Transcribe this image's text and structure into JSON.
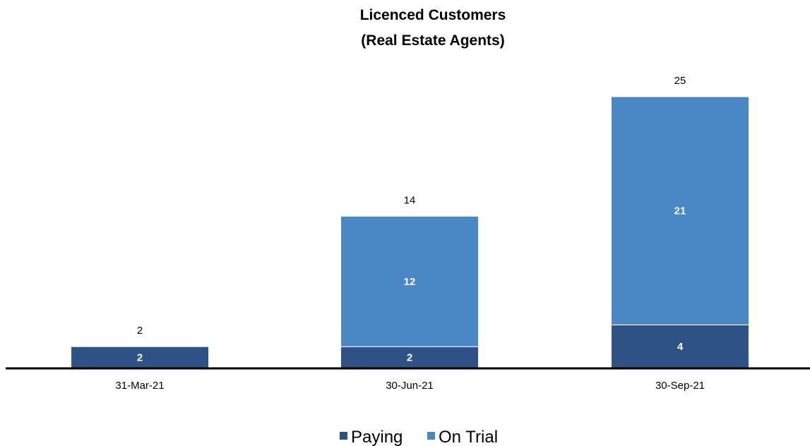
{
  "chart_data": {
    "type": "bar",
    "stacked": true,
    "title": "Licenced Customers",
    "subtitle": "(Real Estate Agents)",
    "categories": [
      "31-Mar-21",
      "30-Jun-21",
      "30-Sep-21"
    ],
    "series": [
      {
        "name": "Paying",
        "values": [
          2,
          2,
          4
        ],
        "color": "#2e5284"
      },
      {
        "name": "On Trial",
        "values": [
          0,
          12,
          21
        ],
        "color": "#4a87c5"
      }
    ],
    "totals": [
      2,
      14,
      25
    ],
    "ylim": [
      0,
      25
    ],
    "grid": false,
    "legend": "bottom-center"
  }
}
